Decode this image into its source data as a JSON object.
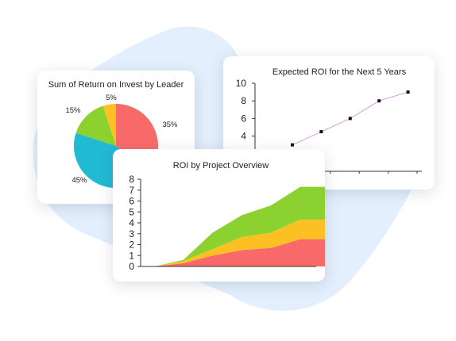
{
  "colors": {
    "backdrop": "#e3effc",
    "red": "#f86a6a",
    "teal": "#22b9d3",
    "green": "#8bd12f",
    "yellow": "#fdc022",
    "line": "#d99ae0",
    "marker": "#111111"
  },
  "chart_data": [
    {
      "type": "pie",
      "title": "Sum of Return on Invest by Leader",
      "slices": [
        {
          "label": "35%",
          "value": 35,
          "color": "red"
        },
        {
          "label": "45%",
          "value": 45,
          "color": "teal"
        },
        {
          "label": "15%",
          "value": 15,
          "color": "green"
        },
        {
          "label": "5%",
          "value": 5,
          "color": "yellow"
        }
      ]
    },
    {
      "type": "line",
      "title": "Expected ROI for the Next 5 Years",
      "yticks": [
        "10",
        "8",
        "6",
        "4"
      ],
      "ylim": [
        0,
        10
      ],
      "x": [
        1,
        2,
        3,
        4,
        5
      ],
      "values": [
        3,
        4.5,
        6,
        8,
        9
      ],
      "grid": false
    },
    {
      "type": "area",
      "title": "ROI by Project Overview",
      "yticks": [
        "8",
        "7",
        "6",
        "5",
        "4",
        "3",
        "2",
        "1",
        "0"
      ],
      "ylim": [
        0,
        8
      ],
      "x": [
        0,
        1,
        2,
        3,
        4,
        5,
        6
      ],
      "series": [
        {
          "values": [
            0,
            0.3,
            1.0,
            1.5,
            1.7,
            2.5,
            2.5
          ],
          "color": "red"
        },
        {
          "values": [
            0,
            0.5,
            1.6,
            2.7,
            3.1,
            4.3,
            4.3
          ],
          "color": "yellow"
        },
        {
          "values": [
            0,
            0.6,
            3.1,
            4.7,
            5.6,
            7.3,
            7.3
          ],
          "color": "green"
        }
      ],
      "grid": false
    }
  ]
}
